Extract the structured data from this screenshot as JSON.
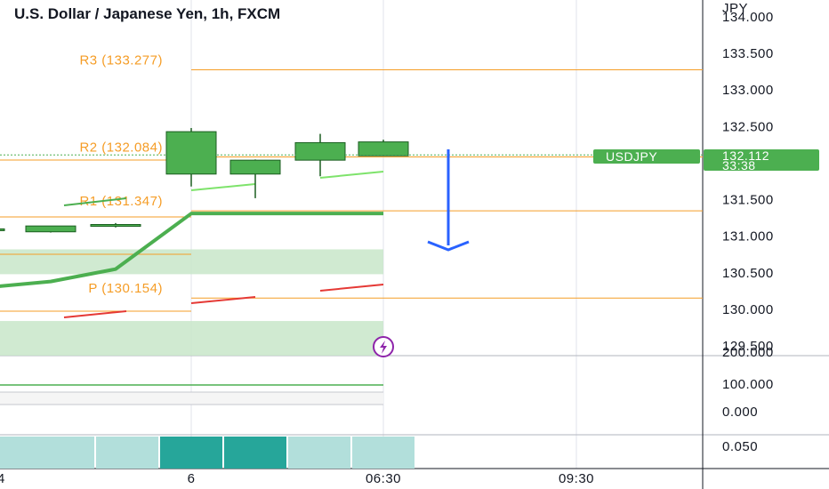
{
  "header": {
    "title": "U.S. Dollar / Japanese Yen, 1h, FXCM",
    "currency": "JPY"
  },
  "symbol_tag": "USDJPY",
  "last_price": "132.112",
  "countdown": "33:38",
  "icons": {
    "alert_marker": "lightning-icon"
  },
  "colors": {
    "up": "#4caf50",
    "up_border": "#1b5e20",
    "pivot": "#f59d27",
    "arrow": "#2962ff",
    "grid": "#e0e3eb",
    "zone": "#c8e6c9",
    "volume_light": "#b2dfdb",
    "volume_dark": "#26a69a",
    "red_seg": "#e53935"
  },
  "chart_data": {
    "type": "candlestick",
    "title": "U.S. Dollar / Japanese Yen, 1h, FXCM",
    "currency_label": "JPY",
    "y_ticks": [
      "134.000",
      "133.500",
      "133.000",
      "132.500",
      "132.000",
      "131.500",
      "131.000",
      "130.500",
      "130.000",
      "129.500"
    ],
    "ylim": [
      129.35,
      134.05
    ],
    "x_tick_labels": [
      "4",
      "6",
      "06:30",
      "09:30"
    ],
    "pivots": [
      {
        "label": "R3 (133.277)",
        "value": 133.277
      },
      {
        "label": "R2 (132.084)",
        "value": 132.084
      },
      {
        "label": "R1 (131.347)",
        "value": 131.347
      },
      {
        "label": "P (130.154)",
        "value": 130.154
      }
    ],
    "candles": [
      {
        "open": 131.08,
        "high": 131.1,
        "low": 131.06,
        "close": 131.1
      },
      {
        "open": 131.06,
        "high": 131.14,
        "low": 131.05,
        "close": 131.14
      },
      {
        "open": 131.14,
        "high": 131.18,
        "low": 131.12,
        "close": 131.16
      },
      {
        "open": 131.85,
        "high": 132.48,
        "low": 131.68,
        "close": 132.43
      },
      {
        "open": 131.85,
        "high": 132.05,
        "low": 131.52,
        "close": 132.04
      },
      {
        "open": 132.04,
        "high": 132.4,
        "low": 131.82,
        "close": 132.28
      },
      {
        "open": 132.1,
        "high": 132.32,
        "low": 132.1,
        "close": 132.29
      }
    ],
    "trend_line": [
      130.3,
      130.38,
      130.55,
      131.31,
      131.31,
      131.31,
      131.31
    ],
    "upper_zone": [
      130.48,
      130.82
    ],
    "lower_zone": [
      129.35,
      129.84
    ],
    "lower_pane_ticks": [
      "200.000",
      "100.000",
      "0.000"
    ],
    "bottom_pane_tick": "0.050",
    "bottom_pane_bars": [
      0.6,
      0.6,
      0.6,
      1.0,
      1.0,
      0.6,
      0.6
    ],
    "bottom_pane_dark": [
      false,
      false,
      false,
      true,
      true,
      false,
      false
    ]
  }
}
